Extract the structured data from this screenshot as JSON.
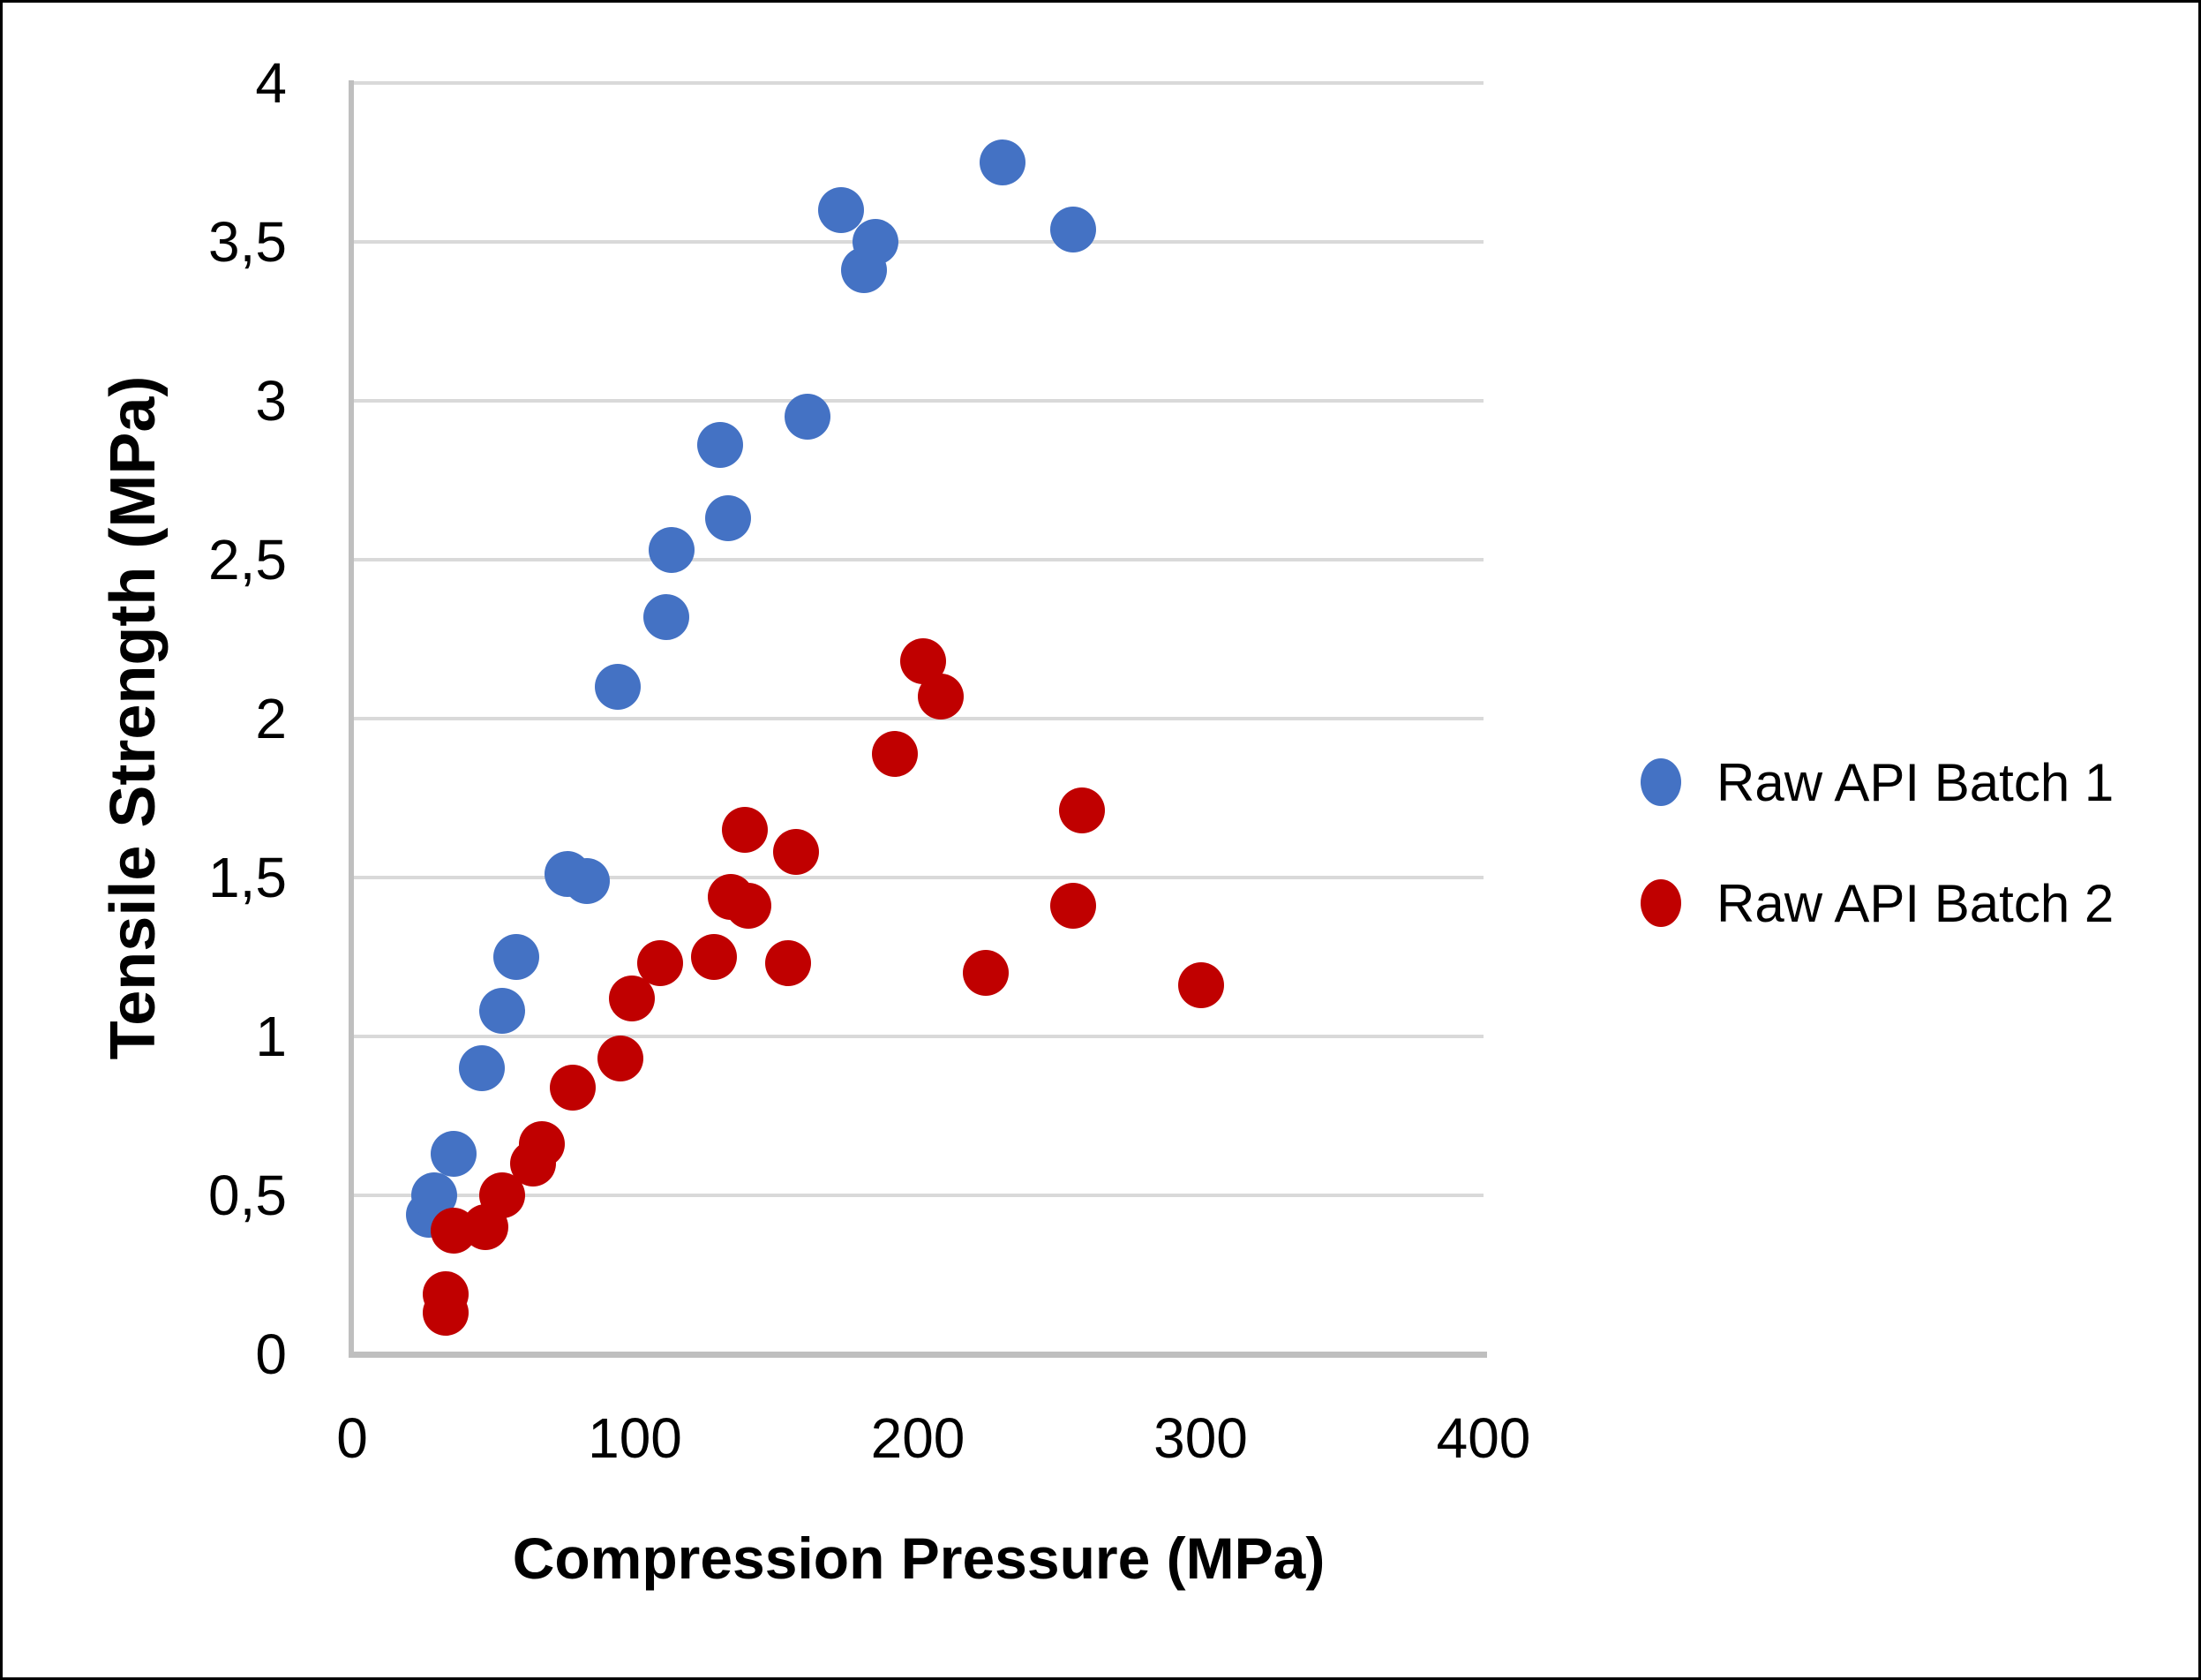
{
  "figure": {
    "background_color": "#ffffff",
    "border_color": "#000000",
    "gridline_color": "#d9d9d9",
    "axis_line_color": "#bfbfbf"
  },
  "chart_data": {
    "type": "scatter",
    "title": "",
    "xlabel": "Compression Pressure (MPa)",
    "ylabel": "Tensile Strength (MPa)",
    "xlim": [
      0,
      400
    ],
    "ylim": [
      0,
      4
    ],
    "grid": "horizontal",
    "legend_position": "right",
    "x_ticks": [
      {
        "value": 0,
        "label": "0"
      },
      {
        "value": 100,
        "label": "100"
      },
      {
        "value": 200,
        "label": "200"
      },
      {
        "value": 300,
        "label": "300"
      },
      {
        "value": 400,
        "label": "400"
      }
    ],
    "y_ticks": [
      {
        "value": 0,
        "label": "0"
      },
      {
        "value": 0.5,
        "label": "0,5"
      },
      {
        "value": 1,
        "label": "1"
      },
      {
        "value": 1.5,
        "label": "1,5"
      },
      {
        "value": 2,
        "label": "2"
      },
      {
        "value": 2.5,
        "label": "2,5"
      },
      {
        "value": 3,
        "label": "3"
      },
      {
        "value": 3.5,
        "label": "3,5"
      },
      {
        "value": 4,
        "label": "4"
      }
    ],
    "series": [
      {
        "name": "Raw API Batch 1",
        "color": "#4472c4",
        "points": [
          [
            27,
            0.44
          ],
          [
            29,
            0.5
          ],
          [
            36,
            0.63
          ],
          [
            46,
            0.9
          ],
          [
            53,
            1.08
          ],
          [
            58,
            1.25
          ],
          [
            76,
            1.51
          ],
          [
            83,
            1.49
          ],
          [
            94,
            2.1
          ],
          [
            111,
            2.32
          ],
          [
            113,
            2.53
          ],
          [
            130,
            2.86
          ],
          [
            133,
            2.63
          ],
          [
            161,
            2.95
          ],
          [
            173,
            3.6
          ],
          [
            181,
            3.41
          ],
          [
            185,
            3.5
          ],
          [
            230,
            3.75
          ],
          [
            255,
            3.54
          ]
        ]
      },
      {
        "name": "Raw API Batch 2",
        "color": "#c00000",
        "points": [
          [
            33,
            0.13
          ],
          [
            33,
            0.19
          ],
          [
            36,
            0.39
          ],
          [
            47,
            0.4
          ],
          [
            53,
            0.5
          ],
          [
            64,
            0.6
          ],
          [
            67,
            0.66
          ],
          [
            78,
            0.84
          ],
          [
            95,
            0.93
          ],
          [
            99,
            1.12
          ],
          [
            109,
            1.23
          ],
          [
            128,
            1.25
          ],
          [
            134,
            1.44
          ],
          [
            139,
            1.65
          ],
          [
            140,
            1.41
          ],
          [
            154,
            1.23
          ],
          [
            157,
            1.58
          ],
          [
            192,
            1.89
          ],
          [
            202,
            2.18
          ],
          [
            208,
            2.07
          ],
          [
            224,
            1.2
          ],
          [
            255,
            1.41
          ],
          [
            258,
            1.71
          ],
          [
            300,
            1.16
          ]
        ]
      }
    ]
  },
  "legend": {
    "items": [
      {
        "label": "Raw API Batch 1",
        "color": "#4472c4"
      },
      {
        "label": "Raw API Batch 2",
        "color": "#c00000"
      }
    ]
  }
}
